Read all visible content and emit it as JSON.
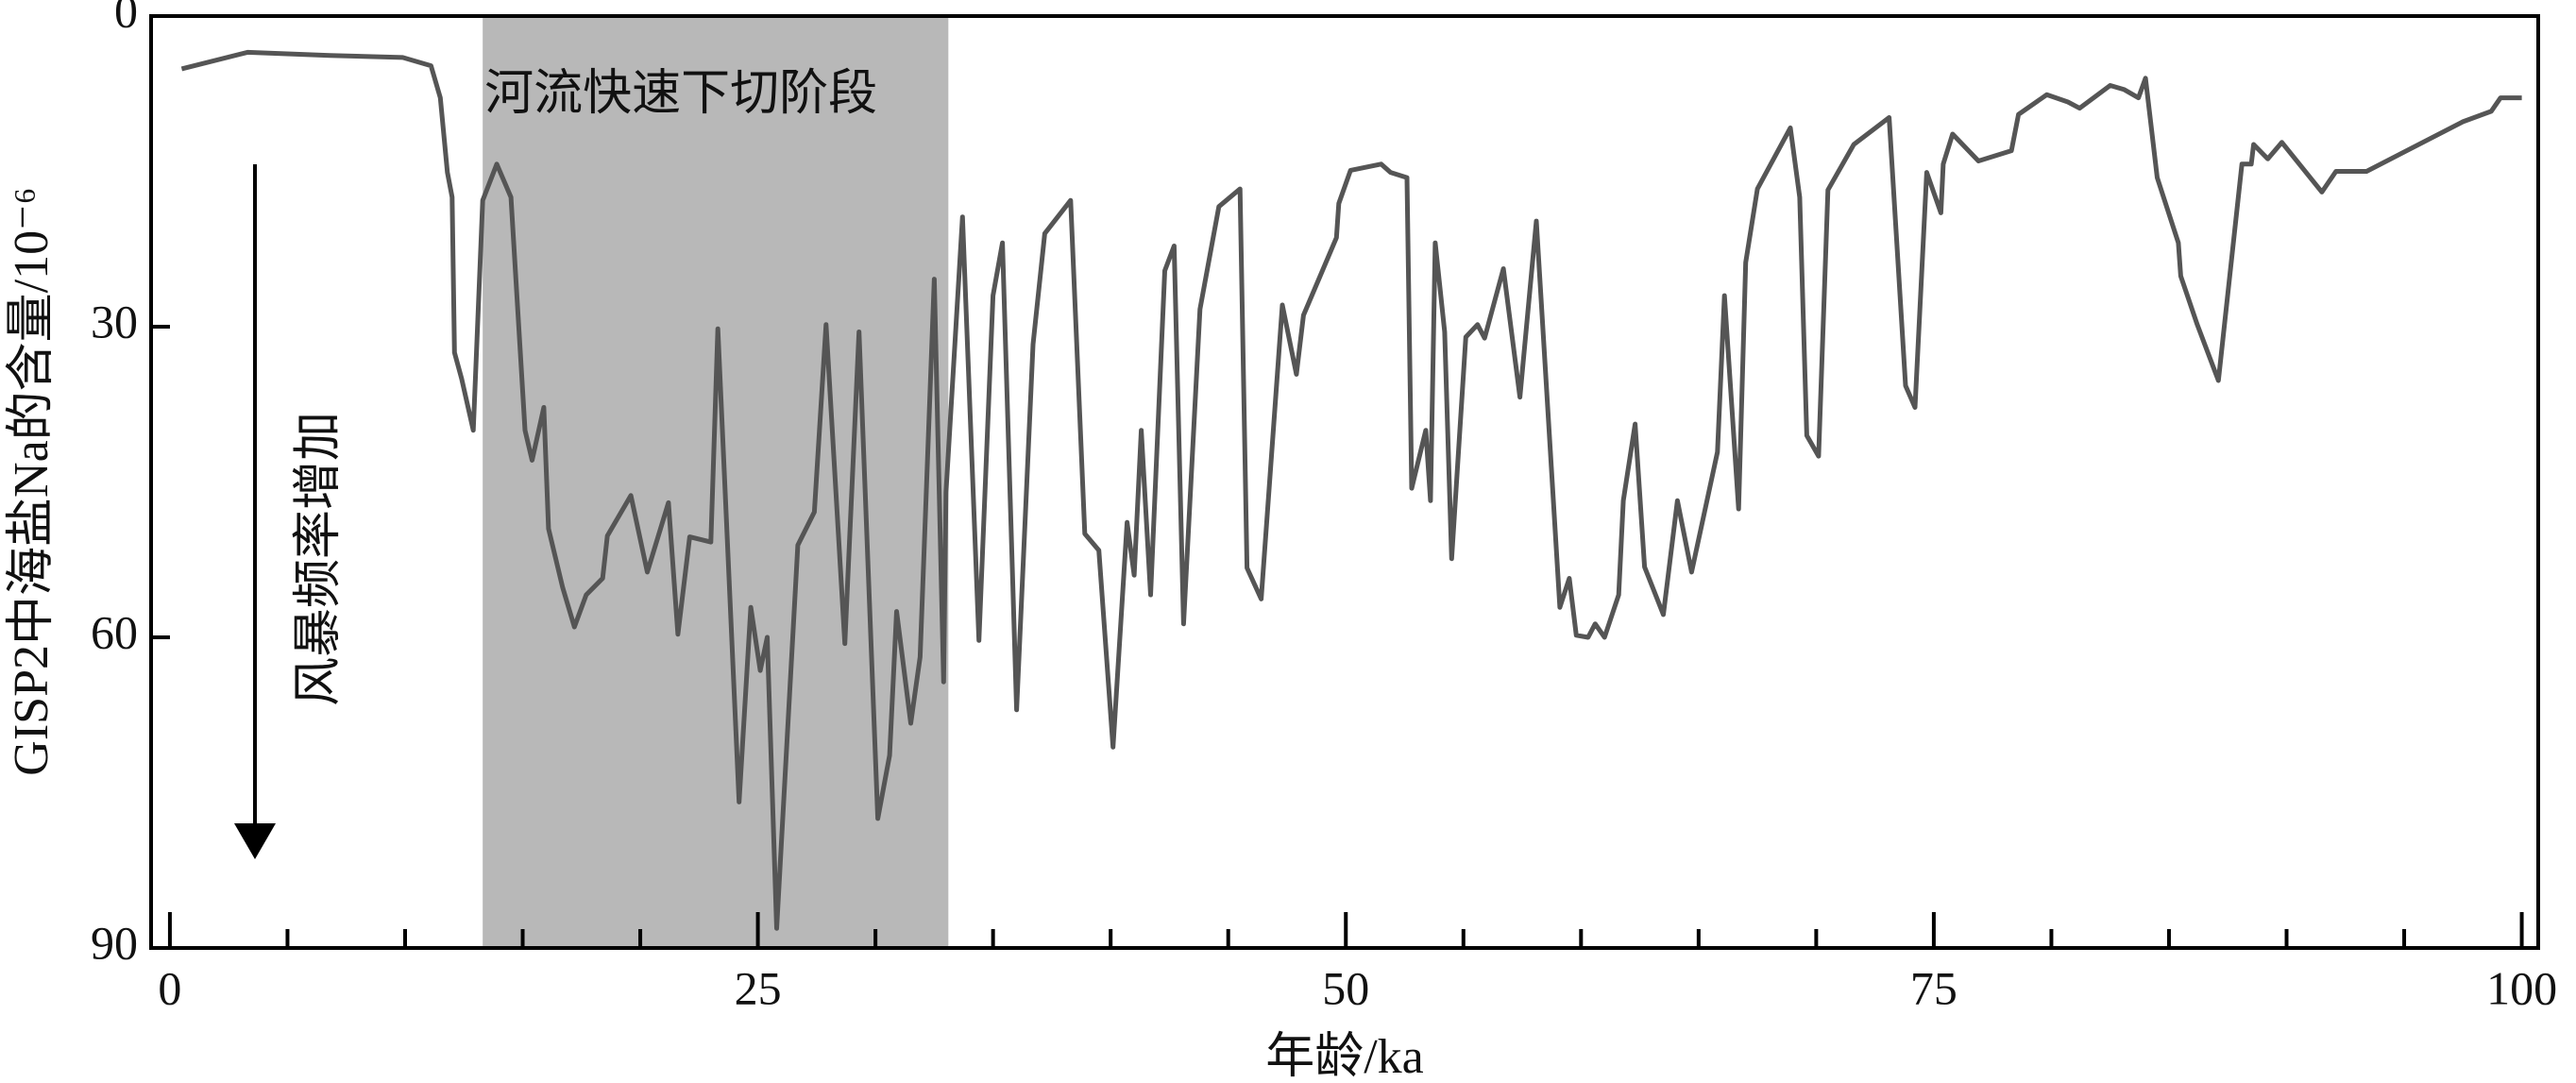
{
  "chart_data": {
    "type": "line",
    "xlabel": "年龄/ka",
    "ylabel": "GISP2中海盐Na的含量/10⁻⁶",
    "x": [
      0.5,
      3.3,
      6.8,
      9.9,
      11.1,
      11.5,
      11.8,
      12.0,
      12.1,
      12.4,
      12.9,
      13.3,
      13.9,
      14.5,
      15.1,
      15.4,
      15.9,
      16.1,
      16.7,
      17.2,
      17.7,
      18.4,
      18.6,
      19.6,
      20.3,
      21.2,
      21.6,
      22.1,
      23.0,
      23.3,
      24.2,
      24.7,
      25.1,
      25.4,
      25.8,
      26.7,
      27.4,
      27.9,
      28.7,
      29.3,
      30.1,
      30.6,
      30.9,
      31.5,
      31.9,
      32.5,
      32.9,
      33.0,
      33.7,
      34.4,
      35.0,
      35.4,
      36.0,
      36.7,
      37.2,
      38.3,
      38.9,
      39.5,
      40.1,
      40.7,
      41.0,
      41.3,
      41.7,
      42.3,
      42.7,
      43.1,
      43.8,
      44.6,
      45.5,
      45.8,
      46.4,
      47.3,
      47.9,
      48.2,
      49.6,
      49.7,
      50.2,
      51.5,
      51.9,
      52.6,
      52.8,
      53.4,
      53.6,
      53.8,
      54.2,
      54.5,
      55.1,
      55.6,
      55.9,
      56.7,
      57.4,
      58.1,
      59.1,
      59.5,
      59.8,
      60.3,
      60.6,
      61.0,
      61.6,
      61.8,
      62.3,
      62.7,
      63.5,
      64.1,
      64.7,
      65.8,
      66.1,
      66.7,
      67.0,
      67.5,
      68.9,
      69.3,
      69.6,
      70.1,
      70.5,
      71.6,
      73.1,
      73.8,
      74.2,
      74.7,
      75.3,
      75.4,
      75.8,
      76.9,
      78.3,
      78.6,
      79.8,
      80.7,
      81.2,
      82.5,
      83.1,
      83.7,
      84.0,
      84.5,
      85.4,
      85.5,
      86.2,
      87.1,
      88.1,
      88.5,
      88.6,
      89.2,
      89.8,
      91.5,
      92.1,
      93.4,
      97.5,
      98.7,
      99.1,
      100
    ],
    "values": [
      5.1,
      3.5,
      3.8,
      4.0,
      4.8,
      7.9,
      15.1,
      17.5,
      32.5,
      35,
      40,
      17.8,
      14.3,
      17.5,
      40,
      42.9,
      37.8,
      49.5,
      55.2,
      59,
      55.9,
      54.3,
      50.2,
      46.3,
      53.7,
      47,
      59.7,
      50.3,
      50.8,
      30.2,
      75.9,
      57.1,
      63.2,
      60,
      88.1,
      51.1,
      47.9,
      29.8,
      60.6,
      30.5,
      77.5,
      71.4,
      57.5,
      68.3,
      61.9,
      25.4,
      64.3,
      46,
      19.4,
      60.3,
      27,
      21.9,
      67,
      31.7,
      21,
      17.8,
      50,
      51.6,
      70.6,
      48.9,
      54,
      40,
      55.9,
      24.6,
      22.2,
      58.7,
      28.3,
      18.4,
      16.7,
      53.3,
      56.3,
      27.9,
      34.6,
      28.9,
      21.4,
      18.1,
      14.9,
      14.3,
      15.1,
      15.6,
      45.6,
      40,
      46.8,
      21.9,
      30.5,
      52.4,
      31,
      29.8,
      31.1,
      24.4,
      36.8,
      19.8,
      57.1,
      54.3,
      59.8,
      60,
      58.7,
      60,
      55.9,
      46.8,
      39.4,
      53.2,
      57.8,
      46.8,
      53.7,
      42.1,
      27,
      47.6,
      23.8,
      16.7,
      10.8,
      17.5,
      40.5,
      42.5,
      16.8,
      12.4,
      9.8,
      35.7,
      37.8,
      15.1,
      19,
      14.3,
      11.4,
      14,
      13,
      9.5,
      7.6,
      8.3,
      8.9,
      6.7,
      7.1,
      7.9,
      6,
      15.6,
      21.9,
      25.1,
      29.8,
      35.2,
      14.3,
      14.3,
      12.4,
      13.8,
      12.2,
      17,
      15,
      15,
      10.2,
      9.2,
      7.9,
      7.9
    ],
    "color": "#555555",
    "xlim": [
      -0.8,
      100.7
    ],
    "xticks": [
      0,
      25,
      50,
      75,
      100
    ],
    "x_minor_ticks": [
      5,
      10,
      15,
      20,
      30,
      35,
      40,
      45,
      55,
      60,
      65,
      70,
      80,
      85,
      90,
      95
    ],
    "ylim": [
      0,
      90
    ],
    "yticks": [
      0,
      30,
      60,
      90
    ],
    "y_inverted": true,
    "shaded_region": {
      "x": [
        13.3,
        33.1
      ],
      "label": "河流快速下切阶段",
      "color": "#b8b8b8"
    },
    "arrow_annotation": "风暴频率增加"
  }
}
